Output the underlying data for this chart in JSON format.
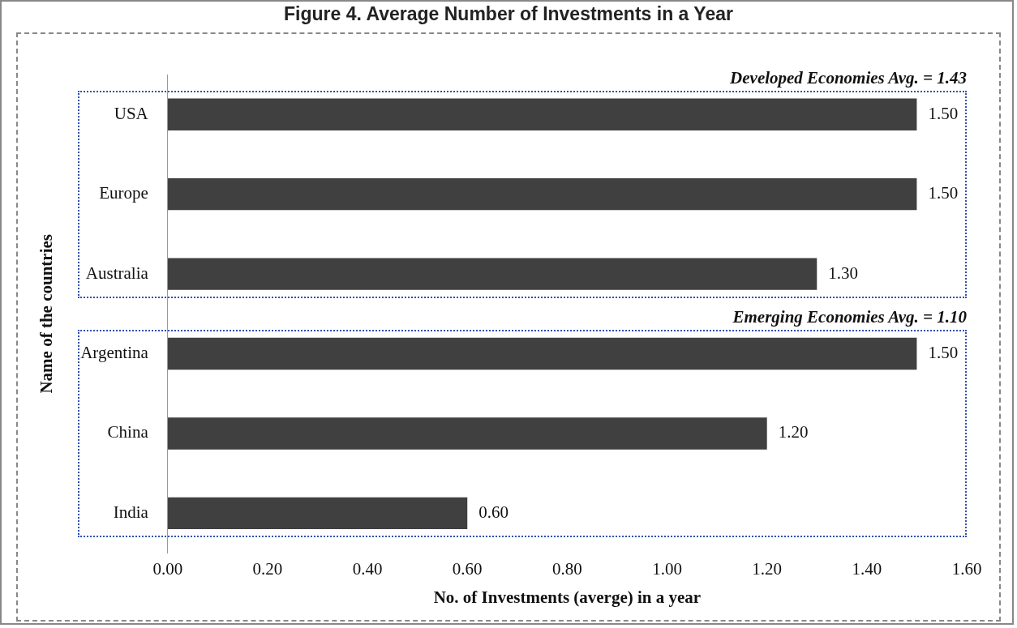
{
  "chart_data": {
    "type": "bar",
    "orientation": "horizontal",
    "title": "Figure 4. Average Number of Investments in a Year",
    "xlabel": "No. of Investments (averge) in a year",
    "ylabel": "Name of the countries",
    "categories": [
      "USA",
      "Europe",
      "Australia",
      "Argentina",
      "China",
      "India"
    ],
    "values": [
      1.5,
      1.5,
      1.3,
      1.5,
      1.2,
      0.6
    ],
    "value_labels": [
      "1.50",
      "1.50",
      "1.30",
      "1.50",
      "1.20",
      "0.60"
    ],
    "color": "#404040",
    "xlim": [
      0,
      1.6
    ],
    "xticks": [
      {
        "value": 0,
        "label": "0.00"
      },
      {
        "value": 0.2,
        "label": "0.20"
      },
      {
        "value": 0.4,
        "label": "0.40"
      },
      {
        "value": 0.6,
        "label": "0.60"
      },
      {
        "value": 0.8,
        "label": "0.80"
      },
      {
        "value": 1.0,
        "label": "1.00"
      },
      {
        "value": 1.2,
        "label": "1.20"
      },
      {
        "value": 1.4,
        "label": "1.40"
      },
      {
        "value": 1.6,
        "label": "1.60"
      }
    ],
    "annotations": [
      "Developed Economies Avg. = 1.43",
      "Emerging Economies Avg. = 1.10"
    ],
    "grid": false,
    "legend": false
  }
}
